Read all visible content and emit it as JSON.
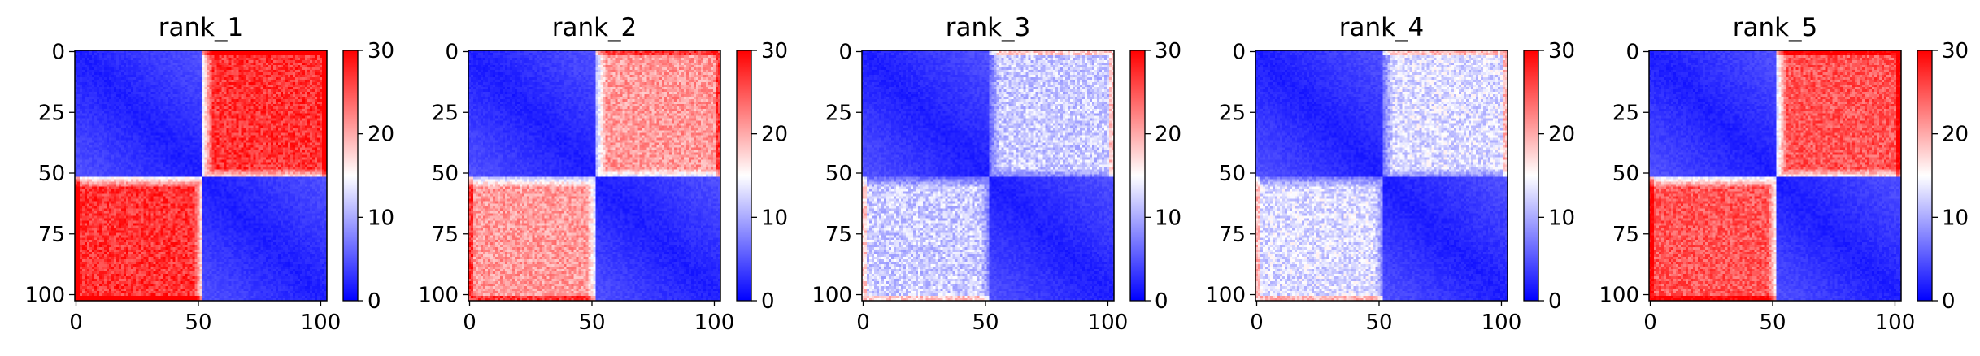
{
  "chart_data": [
    {
      "type": "heatmap",
      "title": "rank_1",
      "n": 103,
      "x_ticks": [
        0,
        50,
        100
      ],
      "y_ticks": [
        0,
        25,
        50,
        75,
        100
      ],
      "colorbar": {
        "range": [
          0,
          30
        ],
        "ticks": [
          0,
          10,
          20,
          30
        ],
        "colormap": "bwr"
      },
      "domain_boundary": 52,
      "off_diagonal_level": 27,
      "offdiag_contact_strength": 0.0,
      "edge_contacts": [
        0,
        102
      ],
      "colors": {
        "low": "#0000ff",
        "mid": "#ffffff",
        "high": "#ff0000"
      }
    },
    {
      "type": "heatmap",
      "title": "rank_2",
      "n": 103,
      "x_ticks": [
        0,
        50,
        100
      ],
      "y_ticks": [
        0,
        25,
        50,
        75,
        100
      ],
      "colorbar": {
        "range": [
          0,
          30
        ],
        "ticks": [
          0,
          10,
          20,
          30
        ],
        "colormap": "bwr"
      },
      "domain_boundary": 52,
      "off_diagonal_level": 21,
      "offdiag_contact_strength": 0.0,
      "edge_contacts": [
        0,
        102
      ],
      "colors": {
        "low": "#0000ff",
        "mid": "#ffffff",
        "high": "#ff0000"
      }
    },
    {
      "type": "heatmap",
      "title": "rank_3",
      "n": 103,
      "x_ticks": [
        0,
        50,
        100
      ],
      "y_ticks": [
        0,
        25,
        50,
        75,
        100
      ],
      "colorbar": {
        "range": [
          0,
          30
        ],
        "ticks": [
          0,
          10,
          20,
          30
        ],
        "colormap": "bwr"
      },
      "domain_boundary": 52,
      "off_diagonal_level": 12,
      "offdiag_contact_strength": 0.0,
      "edge_contacts": [
        0,
        102
      ],
      "colors": {
        "low": "#0000ff",
        "mid": "#ffffff",
        "high": "#ff0000"
      }
    },
    {
      "type": "heatmap",
      "title": "rank_4",
      "n": 103,
      "x_ticks": [
        0,
        50,
        100
      ],
      "y_ticks": [
        0,
        25,
        50,
        75,
        100
      ],
      "colorbar": {
        "range": [
          0,
          30
        ],
        "ticks": [
          0,
          10,
          20,
          30
        ],
        "colormap": "bwr"
      },
      "domain_boundary": 52,
      "off_diagonal_level": 13,
      "offdiag_contact_strength": 0.0,
      "edge_contacts": [
        0,
        102
      ],
      "colors": {
        "low": "#0000ff",
        "mid": "#ffffff",
        "high": "#ff0000"
      }
    },
    {
      "type": "heatmap",
      "title": "rank_5",
      "n": 103,
      "x_ticks": [
        0,
        50,
        100
      ],
      "y_ticks": [
        0,
        25,
        50,
        75,
        100
      ],
      "colorbar": {
        "range": [
          0,
          30
        ],
        "ticks": [
          0,
          10,
          20,
          30
        ],
        "colormap": "bwr"
      },
      "domain_boundary": 52,
      "off_diagonal_level": 25,
      "offdiag_contact_strength": 0.0,
      "edge_contacts": [
        0,
        102
      ],
      "colors": {
        "low": "#0000ff",
        "mid": "#ffffff",
        "high": "#ff0000"
      }
    }
  ]
}
